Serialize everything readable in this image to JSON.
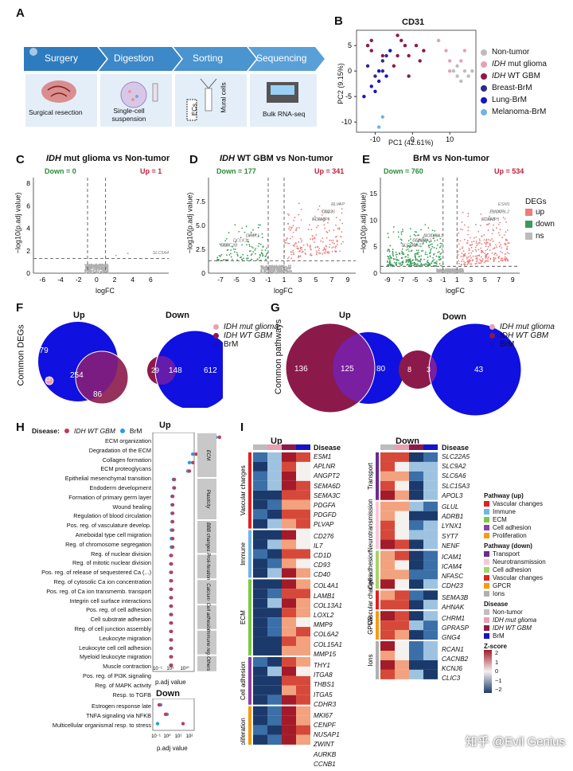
{
  "panels": {
    "A": "A",
    "B": "B",
    "C": "C",
    "D": "D",
    "E": "E",
    "F": "F",
    "G": "G",
    "H": "H",
    "I": "I"
  },
  "workflow": {
    "steps": [
      "Surgery",
      "Digestion",
      "Sorting",
      "Sequencing"
    ],
    "sub": [
      "Surgical resection",
      "Single-cell suspension",
      "Bulk RNA-seq"
    ],
    "sorting_labels": [
      "ECs",
      "Mural cells"
    ],
    "colors": {
      "arrow": "#2e7bbf",
      "arrow_light": "#5aa0d8",
      "box": "#e4eef8"
    }
  },
  "pca": {
    "title": "CD31",
    "xlabel": "PC1 (42.61%)",
    "ylabel": "PC2 (9.15%)",
    "xticks": [
      "-10",
      "0",
      "10"
    ],
    "yticks": [
      "5",
      "0",
      "-5",
      "-10"
    ],
    "legend": [
      {
        "label": "Non-tumor",
        "color": "#bdbdbd"
      },
      {
        "label": "IDH mut glioma",
        "color": "#e8a0b4"
      },
      {
        "label": "IDH WT GBM",
        "color": "#8b1a4a"
      },
      {
        "label": "Breast-BrM",
        "color": "#2b2b8c"
      },
      {
        "label": "Lung-BrM",
        "color": "#1515c8"
      },
      {
        "label": "Melanoma-BrM",
        "color": "#6fb5e6"
      }
    ]
  },
  "volcano": [
    {
      "title_em": "IDH",
      "title": " mut glioma vs Non-tumor",
      "down": "Down = 0",
      "up": "Up = 1",
      "xticks": [
        "-6",
        "-4",
        "-2",
        "0",
        "2",
        "4",
        "6"
      ],
      "labels": [
        "SLC5A4"
      ]
    },
    {
      "title_em": "IDH",
      "title": " WT GBM vs Non-tumor",
      "down": "Down = 177",
      "up": "Up = 341",
      "xticks": [
        "-7",
        "-5",
        "-3",
        "-1",
        "1",
        "3",
        "5",
        "7",
        "9"
      ],
      "labels": [
        "FOLH1",
        "CD276",
        "PLVAP",
        "SCAMP5",
        "TNS3",
        "GRP",
        "CLEC3B",
        "DCLK1",
        "LYNX1",
        "MDK"
      ]
    },
    {
      "title": "BrM vs Non-tumor",
      "down": "Down = 760",
      "up": "Up = 534",
      "xticks": [
        "-9",
        "-7",
        "-5",
        "-3",
        "-1",
        "1",
        "3",
        "5",
        "7",
        "9"
      ],
      "labels": [
        "FOLH1",
        "PLVAP",
        "ESM1",
        "SCAMP5",
        "EXOC3L2",
        "NOTUM",
        "SLC6A6",
        "SLC38A2",
        "COL26A1",
        "SLCO1A2",
        "CDH23"
      ]
    }
  ],
  "volcano_axis": {
    "xlabel": "logFC",
    "ylabel": "−log10(p.adj value)",
    "yticks": [
      "0",
      "2",
      "4",
      "6",
      "8"
    ],
    "yticks2": [
      "0",
      "2.5",
      "5.0",
      "7.5"
    ],
    "yticks3": [
      "0",
      "5",
      "10",
      "15"
    ]
  },
  "degs_legend": {
    "title": "DEGs",
    "items": [
      "up",
      "down",
      "ns"
    ],
    "colors": [
      "#ee7a7a",
      "#3c9a5a",
      "#bbbbbb"
    ]
  },
  "venn_F": {
    "ylabel": "Common DEGs",
    "up_title": "Up",
    "down_title": "Down",
    "up_vals": [
      "279",
      "254",
      "13",
      "86"
    ],
    "down_vals": [
      "29",
      "148",
      "612"
    ]
  },
  "venn_G": {
    "ylabel": "Common pathways",
    "up_title": "Up",
    "down_title": "Down",
    "up_vals": [
      "136",
      "125",
      "80"
    ],
    "down_vals": [
      "8",
      "3",
      "43"
    ]
  },
  "venn_legend": [
    {
      "label": "IDH mut glioma",
      "color": "#e8a0b4"
    },
    {
      "label": "IDH WT GBM",
      "color": "#8b1a4a"
    },
    {
      "label": "BrM",
      "color": "#1010d0"
    }
  ],
  "gsea": {
    "disease_label": "Disease:",
    "legend": [
      {
        "label": "IDH WT GBM",
        "color": "#c0395a"
      },
      {
        "label": "BrM",
        "color": "#2e9be0"
      }
    ],
    "up_title": "Up",
    "down_title": "Down",
    "up_terms": [
      "ECM organization",
      "Degradation of the ECM",
      "Collagen formation",
      "ECM proteoglycans",
      "Epithelial mesenchymal transition",
      "Endoderm development",
      "Formation of primary germ layer",
      "Wound healing",
      "Regulation of blood circulation",
      "Pos. reg. of vasculature develop.",
      "Ameboidal type cell migration",
      "Reg. of chromosome segregation",
      "Reg. of nuclear division",
      "Reg. of mitotic nuclear division",
      "Pos. reg. of release of sequestered Ca (...)",
      "Reg. of cytosolic Ca ion concentration",
      "Pos. reg. of Ca ion transmemb. transport",
      "Integrin cell surface interactions",
      "Pos. reg. of cell adhesion",
      "Cell substrate adhesion",
      "Reg. of cell junction assembly",
      "Leukocyte migration",
      "Leukocyte cell cell adhesion",
      "Myeloid leukocyte migration",
      "Muscle contraction",
      "Pos. reg. of PI3K signaling",
      "Reg. of MAPK activity",
      "Resp. to TGFB"
    ],
    "up_x_gbm": [
      18,
      14,
      11,
      10,
      9,
      4.5,
      4.5,
      4,
      4,
      4,
      4,
      4,
      4,
      4,
      3.6,
      3.6,
      3.6,
      3.6,
      3.6,
      3.6,
      3.6,
      3.6,
      3.6,
      3.6,
      3.6,
      3.6,
      3.6,
      3.6
    ],
    "up_x_brm": [
      17,
      12,
      10,
      9,
      8.5,
      4.2,
      4.3,
      3.8,
      3.8,
      3.8,
      3.8,
      3.6,
      3.6,
      3.6,
      3.4,
      3.4,
      3.4,
      3.4,
      3.4,
      3.4,
      3.4,
      3.4,
      3.4,
      3.4,
      3.4,
      3.4,
      3.4,
      3.4
    ],
    "categories": [
      "ECM",
      "Plasticity",
      "BBB changes",
      "Proli-feration",
      "Calcium",
      "Cell adhesion",
      "Immune reg.",
      "Others"
    ],
    "down_terms": [
      "Estrogen response late",
      "TNFA signaling via NFKB",
      "Multicellular organismal resp. to stress"
    ],
    "xlabel": "p.adj value",
    "xticks": [
      "10⁻¹",
      "10⁵",
      "10¹⁰"
    ],
    "xticks_down": [
      "10⁻¹",
      "10⁰",
      "10¹",
      "10²"
    ]
  },
  "heatmap": {
    "up_title": "Up",
    "down_title": "Down",
    "disease_label": "Disease",
    "up_genes": [
      "ESM1",
      "APLNR",
      "ANGPT2",
      "SEMA6D",
      "SEMA3C",
      "PDGFA",
      "PDGFD",
      "PLVAP",
      "CD276",
      "IL7",
      "CD1D",
      "CD93",
      "CD40",
      "COL4A1",
      "LAMB1",
      "COL13A1",
      "LOXL2",
      "MMP9",
      "COL6A2",
      "COL15A1",
      "MMP15",
      "THY1",
      "ITGA8",
      "THBS1",
      "ITGA5",
      "CDHR3",
      "MKI67",
      "CENPF",
      "NUSAP1",
      "ZWINT",
      "AURKB",
      "CCNB1"
    ],
    "up_groups": [
      {
        "label": "Vascular changes",
        "n": 8,
        "color": "#e02020"
      },
      {
        "label": "Immune",
        "n": 5,
        "color": "#6fb5e6"
      },
      {
        "label": "ECM",
        "n": 8,
        "color": "#7ac943"
      },
      {
        "label": "Cell adhesion",
        "n": 5,
        "color": "#8b3fa8"
      },
      {
        "label": "Proliferation",
        "n": 6,
        "color": "#f39c12"
      }
    ],
    "down_genes": [
      "SLC22A5",
      "SLC9A2",
      "SLC6A6",
      "SLC15A3",
      "APOL3",
      "GLUL",
      "ADRB1",
      "LYNX1",
      "SYT7",
      "NENF",
      "ICAM1",
      "ICAM4",
      "NFASC",
      "CDH23",
      "SEMA3B",
      "AHNAK",
      "CHRM1",
      "GPRASP",
      "GNG4",
      "RCAN1",
      "CACNB2",
      "KCNJ6",
      "CLIC3"
    ],
    "down_groups": [
      {
        "label": "Transport",
        "n": 5,
        "color": "#6a2c91"
      },
      {
        "label": "Neurotransmission",
        "n": 5,
        "color": "#f7c6d9"
      },
      {
        "label": "Cell adhesion",
        "n": 4,
        "color": "#a2d46b"
      },
      {
        "label": "Vascular changes",
        "n": 2,
        "color": "#e02020"
      },
      {
        "label": "GPCR",
        "n": 3,
        "color": "#f39c12"
      },
      {
        "label": "Ions",
        "n": 4,
        "color": "#b0b0b0"
      }
    ],
    "disease_colors": [
      "#bdbdbd",
      "#e8a0b4",
      "#8b1a4a",
      "#1515c8"
    ],
    "legend_up_title": "Pathway (up)",
    "legend_up": [
      {
        "label": "Vascular changes",
        "color": "#e02020"
      },
      {
        "label": "Immune",
        "color": "#6fb5e6"
      },
      {
        "label": "ECM",
        "color": "#7ac943"
      },
      {
        "label": "Cell adhesion",
        "color": "#8b3fa8"
      },
      {
        "label": "Proliferation",
        "color": "#f39c12"
      }
    ],
    "legend_down_title": "Pathway (down)",
    "legend_down": [
      {
        "label": "Transport",
        "color": "#6a2c91"
      },
      {
        "label": "Neurotransmission",
        "color": "#f7c6d9"
      },
      {
        "label": "Cell adhesion",
        "color": "#a2d46b"
      },
      {
        "label": "Vascular changes",
        "color": "#e02020"
      },
      {
        "label": "GPCR",
        "color": "#f39c12"
      },
      {
        "label": "Ions",
        "color": "#b0b0b0"
      }
    ],
    "legend_disease_title": "Disease",
    "legend_disease": [
      {
        "label": "Non-tumor",
        "color": "#bdbdbd"
      },
      {
        "label": "IDH mut glioma",
        "color": "#e8a0b4"
      },
      {
        "label": "IDH WT GBM",
        "color": "#8b1a4a"
      },
      {
        "label": "BrM",
        "color": "#1515c8"
      }
    ],
    "zscore_title": "Z-score",
    "zscore_ticks": [
      "2",
      "1",
      "0",
      "−1",
      "−2"
    ]
  },
  "watermark": "知乎 @Evil Genius"
}
